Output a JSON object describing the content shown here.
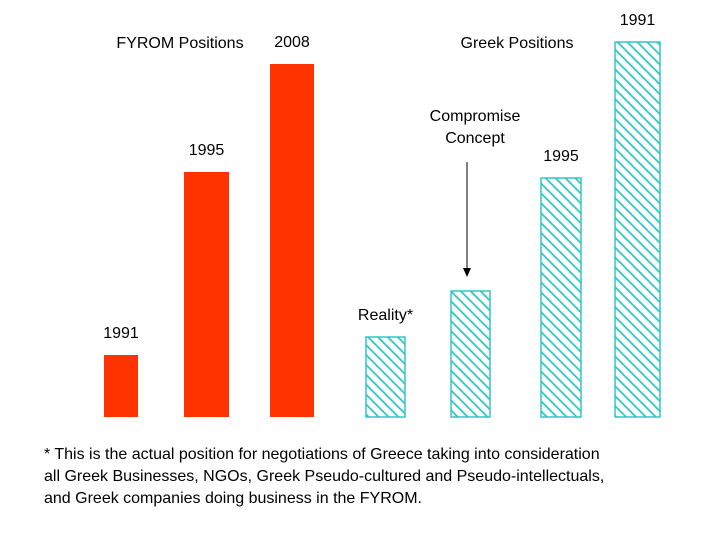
{
  "chart_data": {
    "type": "bar",
    "groups": [
      {
        "name": "FYROM  Positions",
        "color": "#ff3300",
        "pattern": "solid",
        "bars": [
          {
            "label": "1991",
            "value": 62
          },
          {
            "label": "1995",
            "value": 245
          },
          {
            "label": "2008",
            "value": 353
          }
        ]
      },
      {
        "name": "Greek Positions",
        "color": "#33c5c5",
        "pattern": "diagonal-hatch",
        "bars": [
          {
            "label": "Reality*",
            "value": 80
          },
          {
            "label": "",
            "value": 126
          },
          {
            "label": "1995",
            "value": 239
          },
          {
            "label": "1991",
            "value": 375
          }
        ]
      }
    ],
    "annotation": {
      "text": [
        "Compromise",
        "Concept"
      ],
      "target": "Greek Positions bar 2"
    },
    "ylim": [
      0,
      400
    ],
    "grid": false,
    "axes_visible": false
  },
  "footnote": [
    "* This is the actual position for negotiations of Greece taking into consideration",
    "all Greek Businesses, NGOs, Greek Pseudo-cultured and Pseudo-intellectuals,",
    "and Greek companies doing business in the FYROM."
  ]
}
